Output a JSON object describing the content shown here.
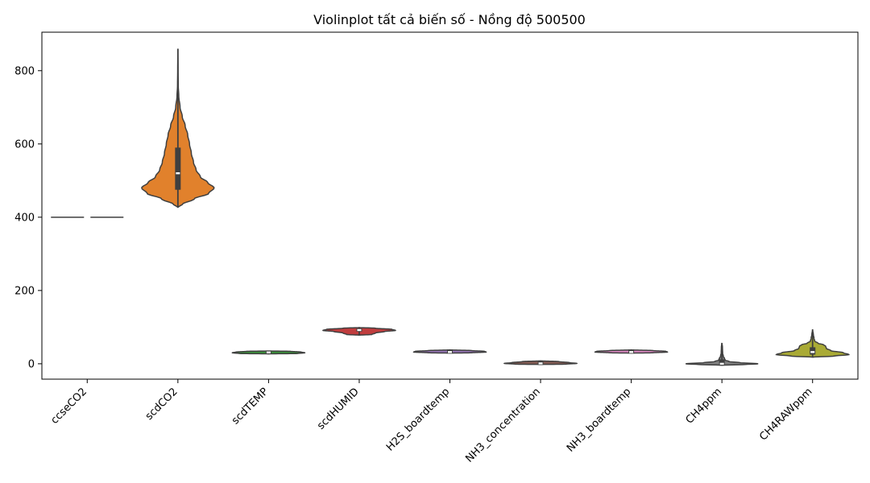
{
  "chart_data": {
    "type": "violin",
    "title": "Violinplot tất cả biến số - Nồng độ 500500",
    "xlabel": "",
    "ylabel": "",
    "ylim": [
      -42,
      905
    ],
    "yticks": [
      0,
      200,
      400,
      600,
      800
    ],
    "categories": [
      "ccseCO2",
      "scdCO2",
      "scdTEMP",
      "scdHUMID",
      "H2S_boardtemp",
      "NH3_concentration",
      "NH3_boardtemp",
      "CH4ppm",
      "CH4RAWppm"
    ],
    "colors": [
      "#3274a1",
      "#e1812c",
      "#3a923a",
      "#c03d3e",
      "#9372b2",
      "#845b53",
      "#d684bd",
      "#7f7f7f",
      "#a9aa35"
    ],
    "series": [
      {
        "name": "ccseCO2",
        "min": 400,
        "q1": 400,
        "median": 400,
        "q3": 400,
        "max": 400,
        "profile": [
          [
            400,
            1.0
          ]
        ]
      },
      {
        "name": "scdCO2",
        "min": 427,
        "q1": 475,
        "median": 520,
        "q3": 590,
        "max": 860,
        "profile": [
          [
            427,
            0.0
          ],
          [
            435,
            0.12
          ],
          [
            450,
            0.45
          ],
          [
            465,
            0.85
          ],
          [
            480,
            1.0
          ],
          [
            495,
            0.82
          ],
          [
            510,
            0.62
          ],
          [
            530,
            0.5
          ],
          [
            550,
            0.43
          ],
          [
            575,
            0.37
          ],
          [
            600,
            0.32
          ],
          [
            625,
            0.27
          ],
          [
            650,
            0.2
          ],
          [
            675,
            0.12
          ],
          [
            700,
            0.06
          ],
          [
            730,
            0.025
          ],
          [
            760,
            0.01
          ],
          [
            800,
            0.005
          ],
          [
            860,
            0.0
          ]
        ]
      },
      {
        "name": "scdTEMP",
        "min": 27,
        "q1": 29.5,
        "median": 31,
        "q3": 32.5,
        "max": 35,
        "profile": [
          [
            27,
            0.0
          ],
          [
            28,
            0.8
          ],
          [
            30,
            1.0
          ],
          [
            32,
            0.9
          ],
          [
            34,
            0.6
          ],
          [
            35,
            0.0
          ]
        ]
      },
      {
        "name": "scdHUMID",
        "min": 78,
        "q1": 88,
        "median": 92,
        "q3": 96,
        "max": 99,
        "profile": [
          [
            78,
            0.0
          ],
          [
            80,
            0.35
          ],
          [
            84,
            0.45
          ],
          [
            88,
            0.7
          ],
          [
            91,
            1.0
          ],
          [
            94,
            0.9
          ],
          [
            97,
            0.45
          ],
          [
            99,
            0.0
          ]
        ]
      },
      {
        "name": "H2S_boardtemp",
        "min": 29,
        "q1": 30.5,
        "median": 32,
        "q3": 36,
        "max": 38,
        "profile": [
          [
            29,
            0.0
          ],
          [
            30,
            0.6
          ],
          [
            32,
            1.0
          ],
          [
            34,
            0.95
          ],
          [
            36,
            0.6
          ],
          [
            38,
            0.0
          ]
        ]
      },
      {
        "name": "NH3_concentration",
        "min": -2,
        "q1": -1,
        "median": 1,
        "q3": 6,
        "max": 8,
        "profile": [
          [
            -2,
            0.0
          ],
          [
            -1,
            0.7
          ],
          [
            1,
            1.0
          ],
          [
            3,
            0.8
          ],
          [
            6,
            0.5
          ],
          [
            8,
            0.0
          ]
        ]
      },
      {
        "name": "NH3_boardtemp",
        "min": 29,
        "q1": 30.5,
        "median": 32,
        "q3": 36,
        "max": 38,
        "profile": [
          [
            29,
            0.0
          ],
          [
            30,
            0.6
          ],
          [
            32,
            1.0
          ],
          [
            34,
            0.95
          ],
          [
            36,
            0.6
          ],
          [
            38,
            0.0
          ]
        ]
      },
      {
        "name": "CH4ppm",
        "min": -4,
        "q1": -2,
        "median": 0,
        "q3": 12,
        "max": 57,
        "profile": [
          [
            -4,
            0.0
          ],
          [
            -2,
            0.65
          ],
          [
            0,
            1.0
          ],
          [
            3,
            0.5
          ],
          [
            6,
            0.2
          ],
          [
            10,
            0.09
          ],
          [
            15,
            0.07
          ],
          [
            20,
            0.04
          ],
          [
            30,
            0.02
          ],
          [
            45,
            0.015
          ],
          [
            57,
            0.0
          ]
        ]
      },
      {
        "name": "CH4RAWppm",
        "min": 18,
        "q1": 25,
        "median": 32,
        "q3": 45,
        "max": 94,
        "profile": [
          [
            18,
            0.0
          ],
          [
            21,
            0.6
          ],
          [
            25,
            1.0
          ],
          [
            30,
            0.85
          ],
          [
            36,
            0.5
          ],
          [
            42,
            0.38
          ],
          [
            48,
            0.36
          ],
          [
            52,
            0.3
          ],
          [
            56,
            0.15
          ],
          [
            62,
            0.06
          ],
          [
            70,
            0.04
          ],
          [
            80,
            0.02
          ],
          [
            94,
            0.0
          ]
        ]
      }
    ]
  }
}
